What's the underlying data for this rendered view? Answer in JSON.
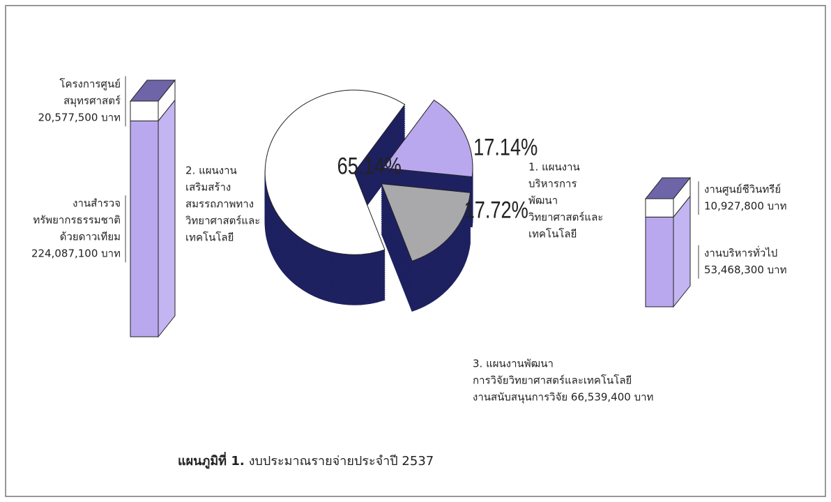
{
  "chart_data": [
    {
      "type": "pie",
      "categories": [
        [
          "2. แผนงาน",
          "เสริมสร้าง",
          "สมรรถภาพทาง",
          "วิทยาศาสตร์และ",
          "เทคโนโลยี"
        ],
        [
          "1. แผนงาน",
          "บริหารการ",
          "พัฒนา",
          "วิทยาศาสตร์และ",
          "เทคโนโลยี"
        ],
        [
          "3. แผนงานพัฒนา",
          "การวิจัยวิทยาศาสตร์และเทคโนโลยี"
        ]
      ],
      "values": [
        65.14,
        17.14,
        17.72
      ],
      "value_labels": [
        "65.14%",
        "17.14%",
        "17.72%"
      ],
      "colors": [
        "#ffffff",
        "#b9a8ee",
        "#a9a9ab"
      ],
      "side_color": "#1e2160",
      "annotations": [
        "งานสนับสนุนการวิจัย 66,539,400 บาท"
      ],
      "caption_label": "แผนภูมิที่ 1.",
      "title": "งบประมาณรายจ่ายประจำปี 2537"
    },
    {
      "type": "bar",
      "stacked": true,
      "series": [
        {
          "name": [
            "โครงการศูนย์",
            "สมุทรศาสตร์"
          ],
          "color": "#ffffff",
          "values": [
            20577500
          ],
          "value_labels": [
            "20,577,500 บาท"
          ]
        },
        {
          "name": [
            "งานสำรวจ",
            "ทรัพยากรธรรมชาติ",
            "ด้วยดาวเทียม"
          ],
          "color": "#b9a8ee",
          "values": [
            224087100
          ],
          "value_labels": [
            "224,087,100 บาท"
          ]
        }
      ]
    },
    {
      "type": "bar",
      "stacked": true,
      "series": [
        {
          "name": [
            "งานศูนย์ชีวินทรีย์"
          ],
          "color": "#ffffff",
          "values": [
            10927800
          ],
          "value_labels": [
            "10,927,800 บาท"
          ]
        },
        {
          "name": [
            "งานบริหารทั่วไป"
          ],
          "color": "#b9a8ee",
          "values": [
            53468300
          ],
          "value_labels": [
            "53,468,300 บาท"
          ]
        }
      ]
    }
  ]
}
